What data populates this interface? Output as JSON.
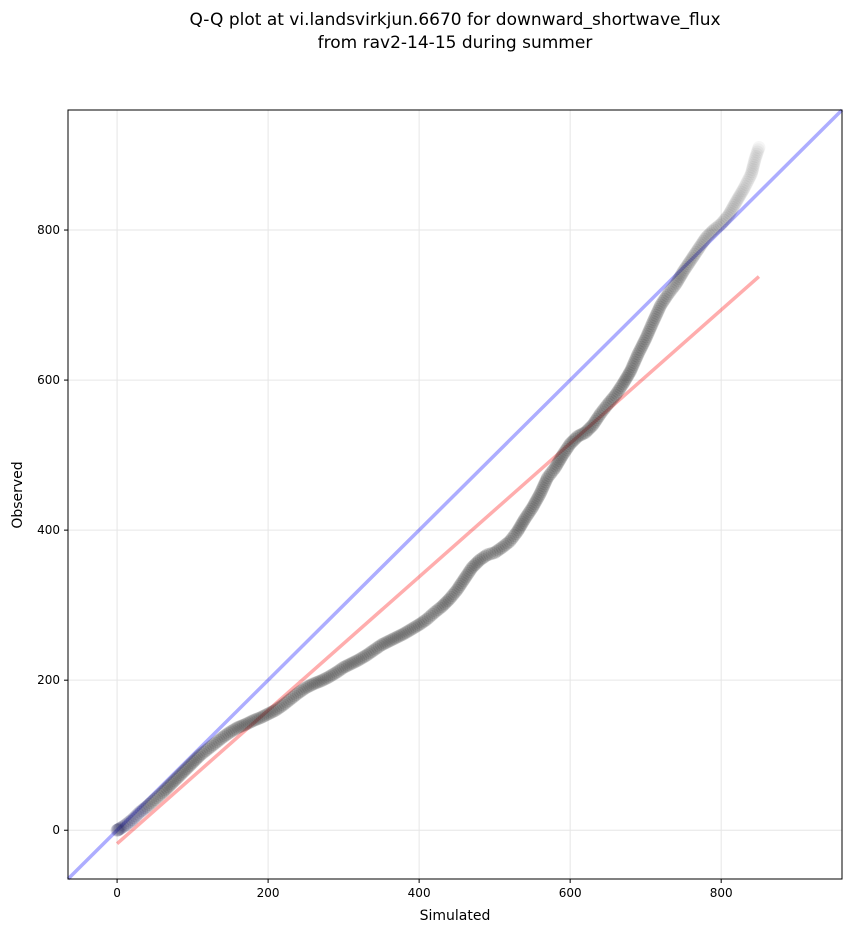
{
  "chart_data": {
    "type": "scatter",
    "title_lines": [
      "Q-Q plot at vi.landsvirkjun.6670 for downward_shortwave_flux",
      "from rav2-14-15 during summer"
    ],
    "xlabel": "Simulated",
    "ylabel": "Observed",
    "xlim": [
      -65,
      960
    ],
    "ylim": [
      -65,
      960
    ],
    "x_ticks": [
      0,
      200,
      400,
      600,
      800
    ],
    "y_ticks": [
      0,
      200,
      400,
      600,
      800
    ],
    "tick_labels_x": [
      "0",
      "200",
      "400",
      "600",
      "800"
    ],
    "tick_labels_y": [
      "0",
      "200",
      "400",
      "600",
      "800"
    ],
    "grid": true,
    "legend": "none",
    "reference_lines": [
      {
        "kind": "identity",
        "color": "#0000ff",
        "points": [
          [
            -65,
            -65
          ],
          [
            960,
            960
          ]
        ]
      },
      {
        "kind": "fit",
        "color": "#ff0000",
        "points": [
          [
            0,
            -18
          ],
          [
            850,
            738
          ]
        ]
      }
    ],
    "quantiles": [
      [
        0,
        0
      ],
      [
        2,
        1
      ],
      [
        5,
        3
      ],
      [
        10,
        6
      ],
      [
        15,
        10
      ],
      [
        20,
        14
      ],
      [
        25,
        19
      ],
      [
        30,
        24
      ],
      [
        40,
        32
      ],
      [
        50,
        41
      ],
      [
        60,
        50
      ],
      [
        70,
        60
      ],
      [
        80,
        70
      ],
      [
        90,
        80
      ],
      [
        100,
        90
      ],
      [
        110,
        100
      ],
      [
        120,
        108
      ],
      [
        130,
        116
      ],
      [
        140,
        124
      ],
      [
        150,
        131
      ],
      [
        160,
        137
      ],
      [
        170,
        141
      ],
      [
        180,
        146
      ],
      [
        190,
        150
      ],
      [
        200,
        155
      ],
      [
        210,
        160
      ],
      [
        220,
        167
      ],
      [
        230,
        175
      ],
      [
        240,
        183
      ],
      [
        250,
        190
      ],
      [
        260,
        195
      ],
      [
        270,
        199
      ],
      [
        280,
        204
      ],
      [
        290,
        210
      ],
      [
        300,
        217
      ],
      [
        310,
        222
      ],
      [
        320,
        227
      ],
      [
        330,
        233
      ],
      [
        340,
        240
      ],
      [
        350,
        247
      ],
      [
        360,
        252
      ],
      [
        370,
        257
      ],
      [
        380,
        262
      ],
      [
        390,
        268
      ],
      [
        400,
        274
      ],
      [
        410,
        281
      ],
      [
        420,
        290
      ],
      [
        430,
        298
      ],
      [
        440,
        308
      ],
      [
        450,
        320
      ],
      [
        460,
        335
      ],
      [
        470,
        350
      ],
      [
        480,
        360
      ],
      [
        490,
        367
      ],
      [
        500,
        370
      ],
      [
        510,
        377
      ],
      [
        520,
        385
      ],
      [
        530,
        398
      ],
      [
        540,
        415
      ],
      [
        550,
        430
      ],
      [
        560,
        448
      ],
      [
        570,
        470
      ],
      [
        580,
        483
      ],
      [
        590,
        500
      ],
      [
        600,
        515
      ],
      [
        610,
        525
      ],
      [
        620,
        530
      ],
      [
        630,
        540
      ],
      [
        640,
        555
      ],
      [
        650,
        568
      ],
      [
        660,
        580
      ],
      [
        670,
        595
      ],
      [
        680,
        612
      ],
      [
        690,
        635
      ],
      [
        700,
        655
      ],
      [
        710,
        678
      ],
      [
        720,
        700
      ],
      [
        730,
        715
      ],
      [
        740,
        728
      ],
      [
        750,
        745
      ],
      [
        760,
        760
      ],
      [
        770,
        775
      ],
      [
        780,
        790
      ],
      [
        790,
        800
      ],
      [
        800,
        808
      ],
      [
        810,
        820
      ],
      [
        820,
        838
      ],
      [
        830,
        855
      ],
      [
        840,
        875
      ],
      [
        845,
        895
      ],
      [
        850,
        910
      ]
    ]
  }
}
